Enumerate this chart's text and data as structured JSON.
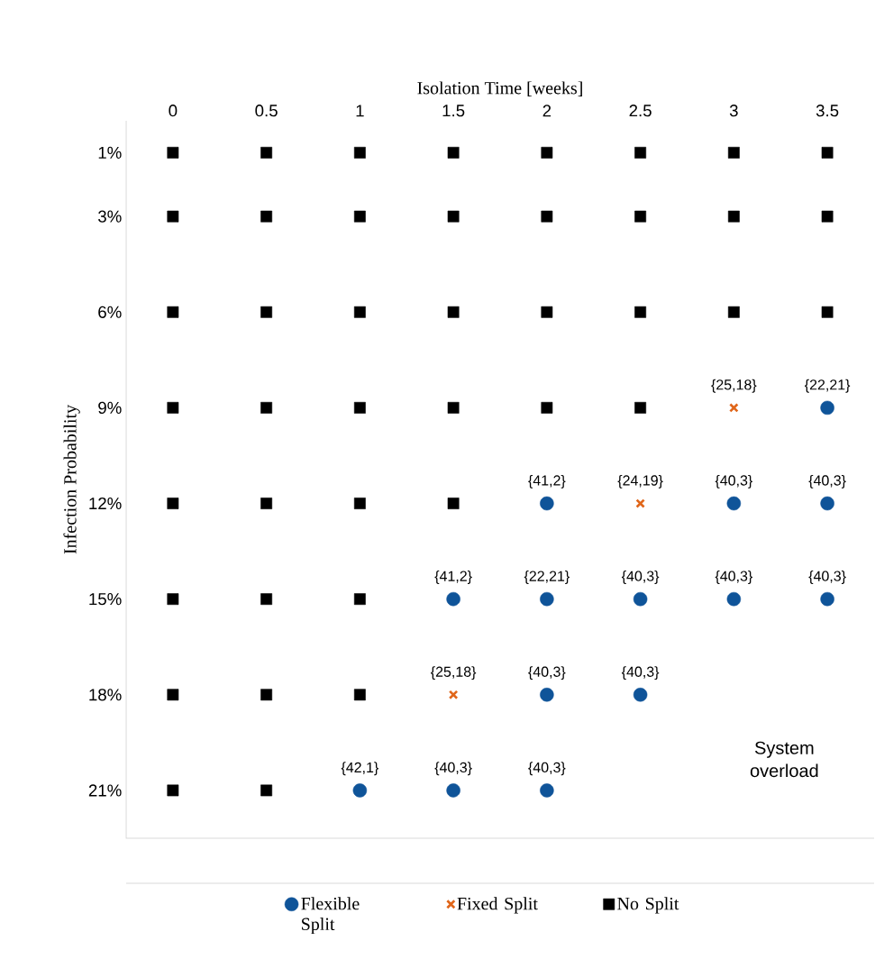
{
  "chart_data": {
    "type": "scatter",
    "xlabel": "Isolation Time [weeks]",
    "ylabel": "Infection Probability",
    "xlim": [
      -0.25,
      3.75
    ],
    "xticks": [
      0,
      0.5,
      1,
      1.5,
      2,
      2.5,
      3,
      3.5
    ],
    "ylim": [
      22.5,
      0
    ],
    "yticks": [
      {
        "value": 1,
        "label": "1%"
      },
      {
        "value": 3,
        "label": "3%"
      },
      {
        "value": 6,
        "label": "6%"
      },
      {
        "value": 9,
        "label": "9%"
      },
      {
        "value": 12,
        "label": "12%"
      },
      {
        "value": 15,
        "label": "15%"
      },
      {
        "value": 18,
        "label": "18%"
      },
      {
        "value": 21,
        "label": "21%"
      }
    ],
    "legend": "bottom",
    "grid": false,
    "series": [
      {
        "name": "Flexible Split",
        "color": "#0f5499",
        "marker": "circle",
        "x": [
          3.5,
          2,
          3,
          3.5,
          1.5,
          2,
          2.5,
          3,
          3.5,
          2,
          2.5,
          1,
          1.5,
          2
        ],
        "values": [
          9,
          12,
          12,
          12,
          15,
          15,
          15,
          15,
          15,
          18,
          18,
          21,
          21,
          21
        ]
      },
      {
        "name": "Fixed Split",
        "color": "#e0661a",
        "marker": "cross",
        "x": [
          3,
          2.5,
          1.5
        ],
        "values": [
          9,
          12,
          18
        ]
      },
      {
        "name": "No Split",
        "color": "#000000",
        "marker": "square",
        "x": [
          0,
          0.5,
          1,
          1.5,
          2,
          2.5,
          3,
          3.5,
          0,
          0.5,
          1,
          1.5,
          2,
          2.5,
          3,
          3.5,
          0,
          0.5,
          1,
          1.5,
          2,
          2.5,
          3,
          3.5,
          0,
          0.5,
          1,
          1.5,
          2,
          2.5,
          0,
          0.5,
          1,
          1.5,
          0,
          0.5,
          1,
          0,
          0.5,
          1,
          0,
          0.5
        ],
        "values": [
          1,
          1,
          1,
          1,
          1,
          1,
          1,
          1,
          3,
          3,
          3,
          3,
          3,
          3,
          3,
          3,
          6,
          6,
          6,
          6,
          6,
          6,
          6,
          6,
          9,
          9,
          9,
          9,
          9,
          9,
          12,
          12,
          12,
          12,
          15,
          15,
          15,
          18,
          18,
          18,
          21,
          21
        ]
      }
    ],
    "annotations": [
      {
        "text": "{25,18}",
        "x": 3,
        "y": 9
      },
      {
        "text": "{22,21}",
        "x": 3.5,
        "y": 9
      },
      {
        "text": "{41,2}",
        "x": 2,
        "y": 12
      },
      {
        "text": "{24,19}",
        "x": 2.5,
        "y": 12
      },
      {
        "text": "{40,3}",
        "x": 3,
        "y": 12
      },
      {
        "text": "{40,3}",
        "x": 3.5,
        "y": 12
      },
      {
        "text": "{41,2}",
        "x": 1.5,
        "y": 15
      },
      {
        "text": "{22,21}",
        "x": 2,
        "y": 15
      },
      {
        "text": "{40,3}",
        "x": 2.5,
        "y": 15
      },
      {
        "text": "{40,3}",
        "x": 3,
        "y": 15
      },
      {
        "text": "{40,3}",
        "x": 3.5,
        "y": 15
      },
      {
        "text": "{25,18}",
        "x": 1.5,
        "y": 18
      },
      {
        "text": "{40,3}",
        "x": 2,
        "y": 18
      },
      {
        "text": "{40,3}",
        "x": 2.5,
        "y": 18
      },
      {
        "text": "{42,1}",
        "x": 1,
        "y": 21
      },
      {
        "text": "{40,3}",
        "x": 1.5,
        "y": 21
      },
      {
        "text": "{40,3}",
        "x": 2,
        "y": 21
      },
      "System overload"
    ]
  }
}
